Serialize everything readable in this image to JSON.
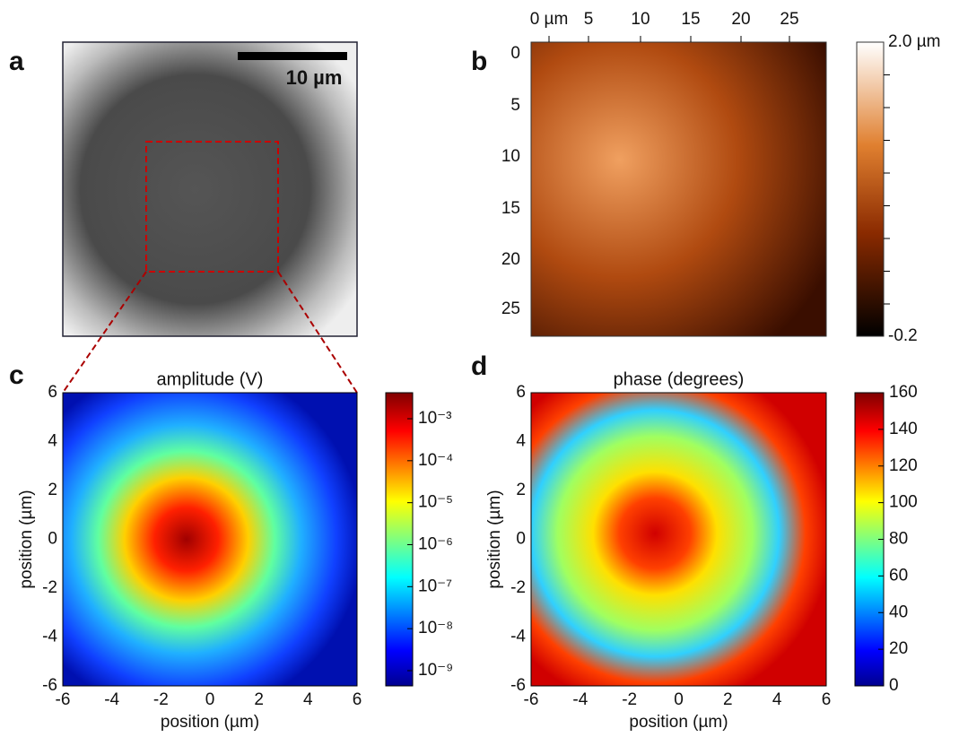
{
  "panels": [
    {
      "label": "a",
      "scale_bar": "10 µm"
    },
    {
      "label": "b",
      "x_ticks": [
        "0 µm",
        "5",
        "10",
        "15",
        "20",
        "25"
      ],
      "y_ticks": [
        "0",
        "5",
        "10",
        "15",
        "20",
        "25"
      ],
      "colorbar_ticks": [
        "2.0 µm",
        "-0.2"
      ]
    },
    {
      "label": "c",
      "title": "amplitude (V)",
      "x_label": "position (µm)",
      "y_label": "position (µm)",
      "x_ticks": [
        "-6",
        "-4",
        "-2",
        "0",
        "2",
        "4",
        "6"
      ],
      "y_ticks": [
        "6",
        "4",
        "2",
        "0",
        "-2",
        "-4",
        "-6"
      ],
      "colorbar_ticks": [
        "10⁻³",
        "10⁻⁴",
        "10⁻⁵",
        "10⁻⁶",
        "10⁻⁷",
        "10⁻⁸",
        "10⁻⁹"
      ]
    },
    {
      "label": "d",
      "title": "phase (degrees)",
      "x_label": "position (µm)",
      "y_label": "position (µm)",
      "x_ticks": [
        "-6",
        "-4",
        "-2",
        "0",
        "2",
        "4",
        "6"
      ],
      "y_ticks": [
        "6",
        "4",
        "2",
        "0",
        "-2",
        "-4",
        "-6"
      ],
      "colorbar_ticks": [
        "160",
        "140",
        "120",
        "100",
        "80",
        "60",
        "40",
        "20",
        "0"
      ]
    }
  ]
}
